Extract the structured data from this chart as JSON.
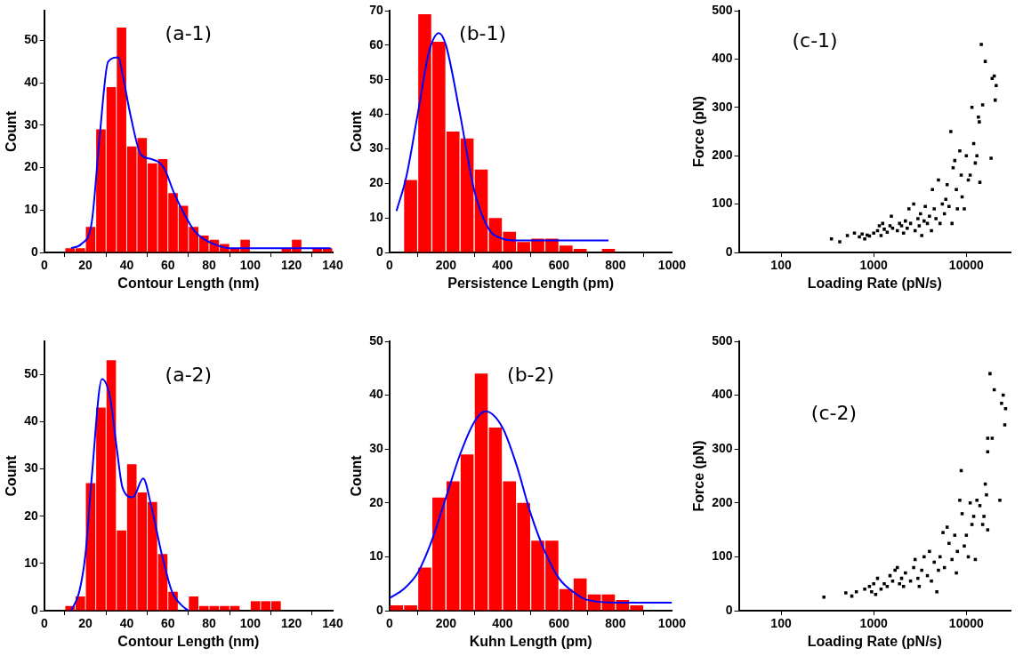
{
  "chart_data": [
    {
      "type": "histogram",
      "xlabel": "Contour Length (nm)",
      "ylabel": "Count",
      "annotations": [
        "(a-1)"
      ],
      "color": "#ff0000",
      "bins": [
        10,
        15,
        20,
        25,
        30,
        35,
        40,
        45,
        50,
        55,
        60,
        65,
        70,
        75,
        80,
        85,
        90,
        95,
        100,
        105,
        110,
        115,
        120,
        125,
        130,
        135,
        140
      ],
      "values": [
        1,
        1,
        6,
        29,
        39,
        53,
        25,
        27,
        21,
        22,
        14,
        11,
        6,
        4,
        3,
        2,
        1,
        3,
        0,
        0,
        0,
        1,
        3,
        0,
        1,
        1
      ],
      "series": [
        {
          "type": "line",
          "color": "#0000ff",
          "x": [
            13,
            18,
            23,
            27,
            31,
            36,
            38,
            42,
            47,
            52,
            58,
            63,
            68,
            73,
            78,
            85,
            90,
            100,
            139
          ],
          "values": [
            1,
            2,
            7,
            28,
            45,
            46,
            42,
            32,
            23,
            22,
            20,
            14,
            9,
            5,
            3,
            1.5,
            1,
            1,
            1
          ]
        }
      ],
      "xlim": [
        0,
        140
      ],
      "xticks": [
        0,
        20,
        40,
        60,
        80,
        100,
        120,
        140
      ],
      "ylim": [
        0,
        57
      ],
      "yticks": [
        0,
        10,
        20,
        30,
        40,
        50
      ],
      "grid": false,
      "legend": false
    },
    {
      "type": "histogram",
      "xlabel": "Persistence Length (pm)",
      "ylabel": "Count",
      "annotations": [
        "(b-1)"
      ],
      "color": "#ff0000",
      "bins": [
        50,
        100,
        150,
        200,
        250,
        300,
        350,
        400,
        450,
        500,
        550,
        600,
        650,
        700,
        750,
        800
      ],
      "values": [
        21,
        69,
        61,
        35,
        33,
        24,
        10,
        6,
        3,
        4,
        4,
        2,
        1,
        0,
        1
      ],
      "series": [
        {
          "type": "line",
          "color": "#0000ff",
          "x": [
            25,
            60,
            100,
            140,
            175,
            200,
            250,
            300,
            350,
            400,
            450,
            775
          ],
          "values": [
            12,
            22,
            40,
            58,
            63.5,
            60,
            40,
            18,
            7,
            4,
            3.5,
            3.5
          ]
        }
      ],
      "xlim": [
        0,
        1000
      ],
      "xticks": [
        0,
        200,
        400,
        600,
        800,
        1000
      ],
      "ylim": [
        0,
        70
      ],
      "yticks": [
        0,
        10,
        20,
        30,
        40,
        50,
        60,
        70
      ],
      "grid": false,
      "legend": false
    },
    {
      "type": "scatter",
      "xlabel": "Loading Rate (pN/s)",
      "ylabel": "Force (pN)",
      "annotations": [
        "(c-1)"
      ],
      "marker": "square",
      "log": "x",
      "series": [
        {
          "color": "#000000",
          "x": [
            350,
            430,
            520,
            620,
            700,
            750,
            800,
            850,
            900,
            1000,
            1100,
            1150,
            1200,
            1250,
            1300,
            1400,
            1500,
            1550,
            1600,
            1800,
            1900,
            2000,
            2100,
            2200,
            2300,
            2400,
            2500,
            2700,
            2800,
            3000,
            3100,
            3200,
            3300,
            3500,
            3600,
            3800,
            4000,
            4200,
            4300,
            4500,
            4700,
            5000,
            5200,
            5500,
            5800,
            6000,
            6200,
            6500,
            6800,
            7000,
            7200,
            7500,
            7800,
            8000,
            8500,
            8800,
            9000,
            9500,
            10000,
            10500,
            11000,
            11500,
            12000,
            12500,
            13000,
            13500,
            13800,
            14000,
            14500,
            15000,
            16000,
            18500,
            19000,
            20000,
            20500,
            21000
          ],
          "values": [
            28,
            22,
            35,
            40,
            32,
            38,
            28,
            36,
            34,
            40,
            45,
            55,
            35,
            60,
            48,
            42,
            55,
            75,
            50,
            45,
            60,
            55,
            40,
            65,
            50,
            90,
            60,
            100,
            45,
            70,
            55,
            80,
            35,
            65,
            95,
            60,
            75,
            45,
            130,
            90,
            70,
            150,
            60,
            100,
            80,
            110,
            140,
            95,
            250,
            60,
            175,
            190,
            130,
            90,
            210,
            160,
            115,
            90,
            200,
            150,
            160,
            300,
            225,
            185,
            200,
            280,
            270,
            145,
            430,
            305,
            395,
            195,
            360,
            365,
            315,
            345
          ]
        }
      ],
      "xlim": [
        35,
        30000
      ],
      "xticks": [
        100,
        1000,
        10000
      ],
      "ylim": [
        0,
        500
      ],
      "yticks": [
        0,
        100,
        200,
        300,
        400,
        500
      ],
      "grid": false,
      "legend": false
    },
    {
      "type": "histogram",
      "xlabel": "Contour Length (nm)",
      "ylabel": "Count",
      "annotations": [
        "(a-2)"
      ],
      "color": "#ff0000",
      "bins": [
        10,
        15,
        20,
        25,
        30,
        35,
        40,
        45,
        50,
        55,
        60,
        65,
        70,
        75,
        80,
        85,
        90,
        95,
        100,
        105,
        110,
        115
      ],
      "values": [
        1,
        3,
        27,
        43,
        53,
        17,
        31,
        25,
        23,
        12,
        4,
        0,
        3,
        1,
        1,
        1,
        1,
        0,
        2,
        2,
        2
      ],
      "series": [
        {
          "type": "line",
          "color": "#0000ff",
          "x": [
            13,
            17,
            20,
            23,
            28,
            32,
            35,
            38,
            43,
            48,
            52,
            57,
            62,
            67,
            70
          ],
          "values": [
            0,
            4,
            12,
            28,
            49,
            45,
            35,
            26,
            24,
            28,
            22,
            12,
            4,
            1,
            0
          ]
        }
      ],
      "xlim": [
        0,
        140
      ],
      "xticks": [
        0,
        20,
        40,
        60,
        80,
        100,
        120,
        140
      ],
      "ylim": [
        0,
        57
      ],
      "yticks": [
        0,
        10,
        20,
        30,
        40,
        50
      ],
      "grid": false,
      "legend": false
    },
    {
      "type": "histogram",
      "xlabel": "Kuhn Length (pm)",
      "ylabel": "Count",
      "annotations": [
        "(b-2)"
      ],
      "color": "#ff0000",
      "bins": [
        0,
        50,
        100,
        150,
        200,
        250,
        300,
        350,
        400,
        450,
        500,
        550,
        600,
        650,
        700,
        750,
        800,
        850,
        900
      ],
      "values": [
        1,
        1,
        8,
        21,
        24,
        29,
        44,
        34,
        24,
        20,
        13,
        13,
        4,
        6,
        3,
        3,
        2,
        1
      ],
      "series": [
        {
          "type": "line",
          "color": "#0000ff",
          "x": [
            0,
            50,
            100,
            150,
            200,
            250,
            300,
            340,
            400,
            450,
            500,
            550,
            600,
            650,
            700,
            800,
            1000
          ],
          "values": [
            2.3,
            4,
            7,
            13,
            21,
            29,
            35,
            37,
            34,
            27,
            18,
            11,
            6,
            3.5,
            2,
            1.5,
            1.5
          ]
        }
      ],
      "xlim": [
        0,
        1000
      ],
      "xticks": [
        0,
        200,
        400,
        600,
        800,
        1000
      ],
      "ylim": [
        0,
        50
      ],
      "yticks": [
        0,
        10,
        20,
        30,
        40,
        50
      ],
      "grid": false,
      "legend": false
    },
    {
      "type": "scatter",
      "xlabel": "Loading Rate (pN/s)",
      "ylabel": "Force (pN)",
      "annotations": [
        "(c-2)"
      ],
      "marker": "square",
      "log": "x",
      "series": [
        {
          "color": "#000000",
          "x": [
            290,
            500,
            580,
            650,
            800,
            900,
            950,
            1000,
            1050,
            1100,
            1200,
            1300,
            1400,
            1500,
            1600,
            1700,
            1800,
            1900,
            2000,
            2100,
            2200,
            2500,
            2700,
            2800,
            3000,
            3100,
            3300,
            3500,
            3800,
            4000,
            4200,
            4500,
            4800,
            5000,
            5200,
            5600,
            5800,
            6200,
            6500,
            7000,
            7500,
            7800,
            8000,
            8500,
            8800,
            9000,
            9500,
            10000,
            10500,
            11000,
            11500,
            12000,
            12500,
            13000,
            14000,
            15000,
            15500,
            16000,
            16500,
            17000,
            17000,
            17000,
            18000,
            19000,
            20000,
            23000,
            24000,
            25000,
            26000,
            26500
          ],
          "values": [
            25,
            33,
            27,
            35,
            40,
            45,
            35,
            50,
            30,
            60,
            40,
            50,
            45,
            65,
            55,
            75,
            80,
            50,
            60,
            45,
            70,
            55,
            80,
            95,
            60,
            45,
            75,
            100,
            65,
            110,
            55,
            90,
            35,
            75,
            100,
            145,
            80,
            155,
            125,
            95,
            140,
            70,
            110,
            205,
            260,
            180,
            120,
            140,
            100,
            200,
            160,
            175,
            95,
            205,
            195,
            160,
            175,
            235,
            215,
            295,
            320,
            150,
            440,
            320,
            410,
            205,
            385,
            400,
            345,
            375
          ]
        }
      ],
      "xlim": [
        35,
        30000
      ],
      "xticks": [
        100,
        1000,
        10000
      ],
      "ylim": [
        0,
        500
      ],
      "yticks": [
        0,
        100,
        200,
        300,
        400,
        500
      ],
      "grid": false,
      "legend": false
    }
  ]
}
